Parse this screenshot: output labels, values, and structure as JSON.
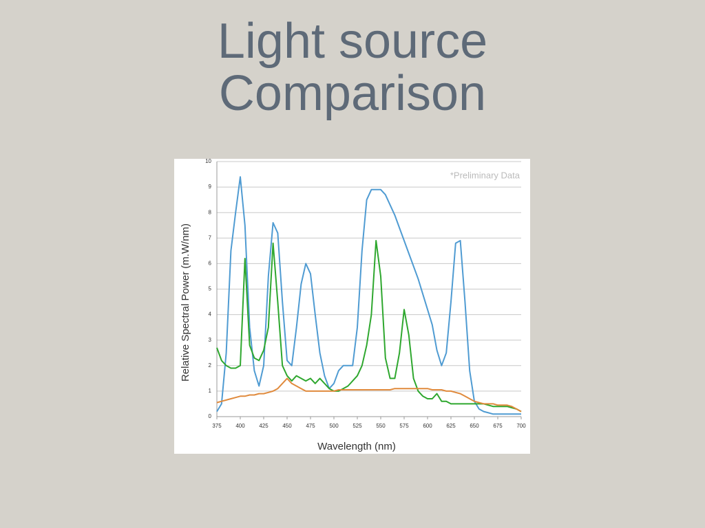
{
  "slide": {
    "title": "Light source Comparison"
  },
  "chart_data": {
    "type": "line",
    "annotation": "*Preliminary Data",
    "x_label": "Wavelength (nm)",
    "y_label": "Relative Spectral Power (m.W/nm)",
    "x": [
      375,
      380,
      385,
      390,
      395,
      400,
      405,
      410,
      415,
      420,
      425,
      430,
      435,
      440,
      445,
      450,
      455,
      460,
      465,
      470,
      475,
      480,
      485,
      490,
      495,
      500,
      505,
      510,
      515,
      520,
      525,
      530,
      535,
      540,
      545,
      550,
      555,
      560,
      565,
      570,
      575,
      580,
      585,
      590,
      595,
      600,
      605,
      610,
      615,
      620,
      625,
      630,
      635,
      640,
      645,
      650,
      655,
      660,
      665,
      670,
      675,
      680,
      685,
      690,
      695,
      700
    ],
    "series": [
      {
        "color": "#4f9bd2",
        "values": [
          0.2,
          0.5,
          2.5,
          6.5,
          8.0,
          9.4,
          7.5,
          3.5,
          1.8,
          1.2,
          2.0,
          5.5,
          7.6,
          7.2,
          4.5,
          2.2,
          2.0,
          3.5,
          5.2,
          6.0,
          5.6,
          4.0,
          2.5,
          1.6,
          1.1,
          1.3,
          1.8,
          2.0,
          2.0,
          2.0,
          3.5,
          6.5,
          8.5,
          8.9,
          8.9,
          8.9,
          8.7,
          8.3,
          7.9,
          7.4,
          6.9,
          6.4,
          5.9,
          5.4,
          4.8,
          4.2,
          3.6,
          2.6,
          2.0,
          2.5,
          4.5,
          6.8,
          6.9,
          4.5,
          1.8,
          0.6,
          0.3,
          0.2,
          0.15,
          0.1,
          0.1,
          0.1,
          0.1,
          0.1,
          0.1,
          0.1
        ]
      },
      {
        "color": "#2ea72e",
        "values": [
          2.7,
          2.2,
          2.0,
          1.9,
          1.9,
          2.0,
          6.2,
          2.8,
          2.3,
          2.2,
          2.6,
          3.5,
          6.8,
          4.5,
          2.0,
          1.6,
          1.4,
          1.6,
          1.5,
          1.4,
          1.5,
          1.3,
          1.5,
          1.3,
          1.1,
          1.0,
          1.0,
          1.1,
          1.2,
          1.4,
          1.6,
          2.0,
          2.8,
          4.0,
          6.9,
          5.5,
          2.3,
          1.5,
          1.5,
          2.5,
          4.2,
          3.2,
          1.5,
          1.0,
          0.8,
          0.7,
          0.7,
          0.9,
          0.6,
          0.6,
          0.5,
          0.5,
          0.5,
          0.5,
          0.5,
          0.5,
          0.5,
          0.5,
          0.45,
          0.4,
          0.4,
          0.4,
          0.4,
          0.35,
          0.3,
          0.2
        ]
      },
      {
        "color": "#e08a3c",
        "values": [
          0.55,
          0.6,
          0.65,
          0.7,
          0.75,
          0.8,
          0.8,
          0.85,
          0.85,
          0.9,
          0.9,
          0.95,
          1.0,
          1.1,
          1.3,
          1.5,
          1.3,
          1.2,
          1.1,
          1.0,
          1.0,
          1.0,
          1.0,
          1.0,
          1.0,
          1.0,
          1.05,
          1.05,
          1.05,
          1.05,
          1.05,
          1.05,
          1.05,
          1.05,
          1.05,
          1.05,
          1.05,
          1.05,
          1.1,
          1.1,
          1.1,
          1.1,
          1.1,
          1.1,
          1.1,
          1.1,
          1.05,
          1.05,
          1.05,
          1.0,
          1.0,
          0.95,
          0.9,
          0.8,
          0.7,
          0.6,
          0.55,
          0.5,
          0.5,
          0.5,
          0.45,
          0.45,
          0.45,
          0.4,
          0.3,
          0.2
        ]
      }
    ],
    "xlim": [
      375,
      700
    ],
    "xticks": [
      375,
      400,
      425,
      450,
      475,
      500,
      525,
      550,
      575,
      600,
      625,
      650,
      675,
      700
    ],
    "ylim": [
      0,
      10
    ],
    "yticks": [
      0,
      1,
      2,
      3,
      4,
      5,
      6,
      7,
      8,
      9,
      10
    ],
    "grid": true
  }
}
